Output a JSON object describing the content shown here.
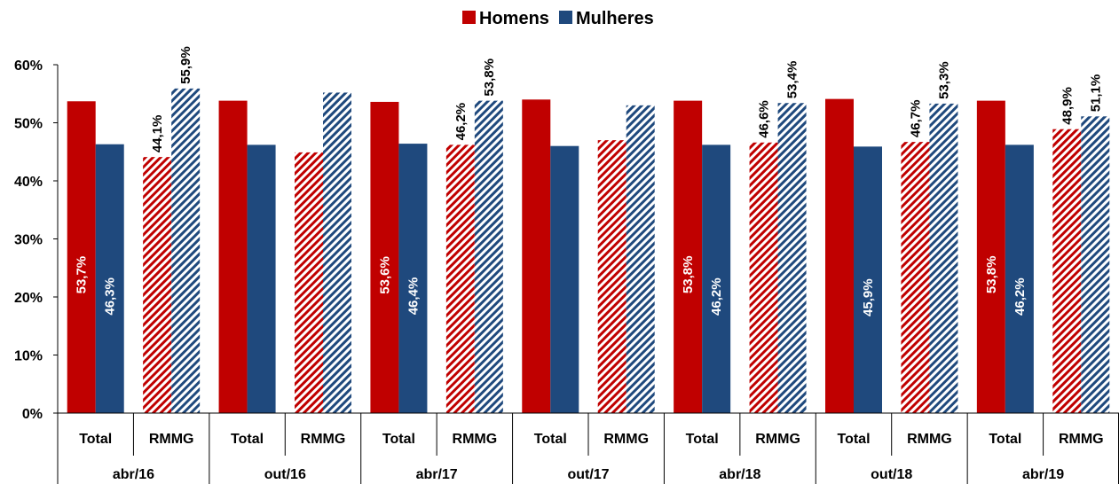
{
  "chart_data": {
    "type": "bar",
    "legend": {
      "position": "top-center"
    },
    "series": [
      {
        "name": "Homens",
        "color": "#C00000"
      },
      {
        "name": "Mulheres",
        "color": "#1F497D"
      }
    ],
    "ylim": [
      0,
      0.6
    ],
    "yticks": [
      "0%",
      "10%",
      "20%",
      "30%",
      "40%",
      "50%",
      "60%"
    ],
    "grid": false,
    "groups": [
      {
        "label": "abr/16",
        "categories": [
          {
            "label": "Total",
            "pattern": "solid",
            "values": [
              0.537,
              0.463
            ],
            "labels": [
              "53,7%",
              "46,3%"
            ]
          },
          {
            "label": "RMMG",
            "pattern": "hatched",
            "values": [
              0.441,
              0.559
            ],
            "labels": [
              "44,1%",
              "55,9%"
            ]
          }
        ]
      },
      {
        "label": "out/16",
        "categories": [
          {
            "label": "Total",
            "pattern": "solid",
            "values": [
              0.538,
              0.462
            ],
            "labels": [
              "",
              ""
            ]
          },
          {
            "label": "RMMG",
            "pattern": "hatched",
            "values": [
              0.449,
              0.552
            ],
            "labels": [
              "",
              ""
            ]
          }
        ]
      },
      {
        "label": "abr/17",
        "categories": [
          {
            "label": "Total",
            "pattern": "solid",
            "values": [
              0.536,
              0.464
            ],
            "labels": [
              "53,6%",
              "46,4%"
            ]
          },
          {
            "label": "RMMG",
            "pattern": "hatched",
            "values": [
              0.462,
              0.538
            ],
            "labels": [
              "46,2%",
              "53,8%"
            ]
          }
        ]
      },
      {
        "label": "out/17",
        "categories": [
          {
            "label": "Total",
            "pattern": "solid",
            "values": [
              0.54,
              0.46
            ],
            "labels": [
              "",
              ""
            ]
          },
          {
            "label": "RMMG",
            "pattern": "hatched",
            "values": [
              0.47,
              0.53
            ],
            "labels": [
              "",
              ""
            ]
          }
        ]
      },
      {
        "label": "abr/18",
        "categories": [
          {
            "label": "Total",
            "pattern": "solid",
            "values": [
              0.538,
              0.462
            ],
            "labels": [
              "53,8%",
              "46,2%"
            ]
          },
          {
            "label": "RMMG",
            "pattern": "hatched",
            "values": [
              0.466,
              0.534
            ],
            "labels": [
              "46,6%",
              "53,4%"
            ]
          }
        ]
      },
      {
        "label": "out/18",
        "categories": [
          {
            "label": "Total",
            "pattern": "solid",
            "values": [
              0.541,
              0.459
            ],
            "labels": [
              "",
              "45,9%"
            ]
          },
          {
            "label": "RMMG",
            "pattern": "hatched",
            "values": [
              0.467,
              0.533
            ],
            "labels": [
              "46,7%",
              "53,3%"
            ]
          }
        ]
      },
      {
        "label": "abr/19",
        "categories": [
          {
            "label": "Total",
            "pattern": "solid",
            "values": [
              0.538,
              0.462
            ],
            "labels": [
              "53,8%",
              "46,2%"
            ]
          },
          {
            "label": "RMMG",
            "pattern": "hatched",
            "values": [
              0.489,
              0.511
            ],
            "labels": [
              "48,9%",
              "51,1%"
            ]
          }
        ]
      }
    ]
  }
}
